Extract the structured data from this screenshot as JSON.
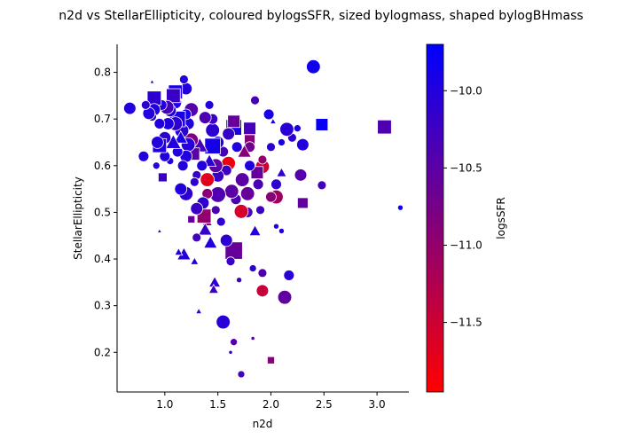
{
  "chart_data": {
    "type": "scatter",
    "title": "n2d vs StellarEllipticity, coloured bylogsSFR, sized bylogmass, shaped bylogBHmass",
    "xlabel": "n2d",
    "ylabel": "StellarEllipticity",
    "xlim": [
      0.55,
      3.3
    ],
    "ylim": [
      0.115,
      0.86
    ],
    "xticks": [
      {
        "value": 1.0,
        "label": "1.0"
      },
      {
        "value": 1.5,
        "label": "1.5"
      },
      {
        "value": 2.0,
        "label": "2.0"
      },
      {
        "value": 2.5,
        "label": "2.5"
      },
      {
        "value": 3.0,
        "label": "3.0"
      }
    ],
    "yticks": [
      {
        "value": 0.2,
        "label": "0.2"
      },
      {
        "value": 0.3,
        "label": "0.3"
      },
      {
        "value": 0.4,
        "label": "0.4"
      },
      {
        "value": 0.5,
        "label": "0.5"
      },
      {
        "value": 0.6,
        "label": "0.6"
      },
      {
        "value": 0.7,
        "label": "0.7"
      },
      {
        "value": 0.8,
        "label": "0.8"
      }
    ],
    "grid": false,
    "spines": "left-bottom",
    "colorbar": {
      "label": "logsSFR",
      "range": [
        -11.95,
        -9.7
      ],
      "colors": [
        "#ff0000",
        "#0000ff"
      ],
      "ticks": [
        {
          "value": -10.0,
          "label": "−10.0"
        },
        {
          "value": -10.5,
          "label": "−10.5"
        },
        {
          "value": -11.0,
          "label": "−11.0"
        },
        {
          "value": -11.5,
          "label": "−11.5"
        }
      ]
    },
    "points": [
      {
        "x": 2.4,
        "y": 0.812,
        "c": -9.85,
        "s": 7,
        "m": "o"
      },
      {
        "x": 3.07,
        "y": 0.683,
        "c": -10.4,
        "s": 7,
        "m": "s"
      },
      {
        "x": 2.48,
        "y": 0.688,
        "c": -9.75,
        "s": 6,
        "m": "s"
      },
      {
        "x": 3.22,
        "y": 0.51,
        "c": -9.8,
        "s": 2,
        "m": "o"
      },
      {
        "x": 2.48,
        "y": 0.558,
        "c": -10.3,
        "s": 4,
        "m": "o"
      },
      {
        "x": 2.3,
        "y": 0.645,
        "c": -10.0,
        "s": 6,
        "m": "o"
      },
      {
        "x": 2.28,
        "y": 0.58,
        "c": -10.45,
        "s": 6,
        "m": "o"
      },
      {
        "x": 2.3,
        "y": 0.52,
        "c": -10.55,
        "s": 5,
        "m": "s"
      },
      {
        "x": 2.25,
        "y": 0.68,
        "c": -9.9,
        "s": 3,
        "m": "o"
      },
      {
        "x": 2.2,
        "y": 0.66,
        "c": -10.1,
        "s": 4,
        "m": "o"
      },
      {
        "x": 2.15,
        "y": 0.678,
        "c": -10.05,
        "s": 7,
        "m": "o"
      },
      {
        "x": 2.1,
        "y": 0.65,
        "c": -9.9,
        "s": 3,
        "m": "o"
      },
      {
        "x": 2.1,
        "y": 0.585,
        "c": -10.1,
        "s": 4,
        "m": "^"
      },
      {
        "x": 2.17,
        "y": 0.365,
        "c": -10.05,
        "s": 5,
        "m": "o"
      },
      {
        "x": 2.13,
        "y": 0.318,
        "c": -10.55,
        "s": 7,
        "m": "o"
      },
      {
        "x": 2.05,
        "y": 0.533,
        "c": -11.1,
        "s": 7,
        "m": "o"
      },
      {
        "x": 2.0,
        "y": 0.533,
        "c": -10.9,
        "s": 5,
        "m": "o"
      },
      {
        "x": 2.05,
        "y": 0.56,
        "c": -10.1,
        "s": 5,
        "m": "o"
      },
      {
        "x": 2.05,
        "y": 0.47,
        "c": -10.0,
        "s": 2,
        "m": "o"
      },
      {
        "x": 2.1,
        "y": 0.46,
        "c": -10.0,
        "s": 2,
        "m": "o"
      },
      {
        "x": 2.0,
        "y": 0.64,
        "c": -10.1,
        "s": 4,
        "m": "o"
      },
      {
        "x": 1.98,
        "y": 0.71,
        "c": -9.9,
        "s": 5,
        "m": "o"
      },
      {
        "x": 2.02,
        "y": 0.695,
        "c": -10.0,
        "s": 2,
        "m": "^"
      },
      {
        "x": 2.0,
        "y": 0.183,
        "c": -10.9,
        "s": 3,
        "m": "s"
      },
      {
        "x": 1.92,
        "y": 0.598,
        "c": -11.5,
        "s": 7,
        "m": "o"
      },
      {
        "x": 1.92,
        "y": 0.613,
        "c": -11.0,
        "s": 4,
        "m": "o"
      },
      {
        "x": 1.92,
        "y": 0.332,
        "c": -11.45,
        "s": 6,
        "m": "o"
      },
      {
        "x": 1.92,
        "y": 0.37,
        "c": -10.4,
        "s": 4,
        "m": "o"
      },
      {
        "x": 1.9,
        "y": 0.505,
        "c": -10.2,
        "s": 4,
        "m": "o"
      },
      {
        "x": 1.88,
        "y": 0.56,
        "c": -10.35,
        "s": 5,
        "m": "o"
      },
      {
        "x": 1.87,
        "y": 0.585,
        "c": -10.6,
        "s": 6,
        "m": "s"
      },
      {
        "x": 1.85,
        "y": 0.74,
        "c": -10.3,
        "s": 4,
        "m": "o"
      },
      {
        "x": 1.85,
        "y": 0.46,
        "c": -10.05,
        "s": 5,
        "m": "^"
      },
      {
        "x": 1.83,
        "y": 0.38,
        "c": -10.1,
        "s": 3,
        "m": "o"
      },
      {
        "x": 1.83,
        "y": 0.23,
        "c": -10.4,
        "s": 1,
        "m": "o"
      },
      {
        "x": 1.8,
        "y": 0.68,
        "c": -10.3,
        "s": 6,
        "m": "s"
      },
      {
        "x": 1.8,
        "y": 0.655,
        "c": -10.9,
        "s": 5,
        "m": "s"
      },
      {
        "x": 1.8,
        "y": 0.64,
        "c": -10.7,
        "s": 5,
        "m": "o"
      },
      {
        "x": 1.8,
        "y": 0.6,
        "c": -10.0,
        "s": 5,
        "m": "o"
      },
      {
        "x": 1.78,
        "y": 0.54,
        "c": -10.6,
        "s": 7,
        "m": "o"
      },
      {
        "x": 1.78,
        "y": 0.5,
        "c": -10.3,
        "s": 5,
        "m": "o"
      },
      {
        "x": 1.75,
        "y": 0.63,
        "c": -10.9,
        "s": 6,
        "m": "^"
      },
      {
        "x": 1.73,
        "y": 0.57,
        "c": -10.5,
        "s": 7,
        "m": "o"
      },
      {
        "x": 1.72,
        "y": 0.502,
        "c": -11.6,
        "s": 7,
        "m": "o"
      },
      {
        "x": 1.7,
        "y": 0.355,
        "c": -10.3,
        "s": 2,
        "m": "o"
      },
      {
        "x": 1.72,
        "y": 0.153,
        "c": -10.3,
        "s": 3,
        "m": "o"
      },
      {
        "x": 1.68,
        "y": 0.64,
        "c": -10.0,
        "s": 5,
        "m": "o"
      },
      {
        "x": 1.67,
        "y": 0.528,
        "c": -10.4,
        "s": 5,
        "m": "o"
      },
      {
        "x": 1.65,
        "y": 0.682,
        "c": -9.95,
        "s": 8,
        "m": "s"
      },
      {
        "x": 1.65,
        "y": 0.695,
        "c": -10.6,
        "s": 6,
        "m": "s"
      },
      {
        "x": 1.65,
        "y": 0.418,
        "c": -10.6,
        "s": 9,
        "m": "s"
      },
      {
        "x": 1.65,
        "y": 0.222,
        "c": -10.4,
        "s": 3,
        "m": "o"
      },
      {
        "x": 1.63,
        "y": 0.545,
        "c": -10.5,
        "s": 7,
        "m": "o"
      },
      {
        "x": 1.62,
        "y": 0.395,
        "c": -10.2,
        "s": 4,
        "m": "o"
      },
      {
        "x": 1.62,
        "y": 0.2,
        "c": -10.1,
        "s": 1,
        "m": "o"
      },
      {
        "x": 1.6,
        "y": 0.605,
        "c": -11.8,
        "s": 7,
        "m": "o"
      },
      {
        "x": 1.6,
        "y": 0.668,
        "c": -10.2,
        "s": 6,
        "m": "o"
      },
      {
        "x": 1.58,
        "y": 0.44,
        "c": -10.1,
        "s": 6,
        "m": "o"
      },
      {
        "x": 1.58,
        "y": 0.59,
        "c": -10.25,
        "s": 5,
        "m": "o"
      },
      {
        "x": 1.55,
        "y": 0.265,
        "c": -10.05,
        "s": 7,
        "m": "o"
      },
      {
        "x": 1.55,
        "y": 0.63,
        "c": -10.3,
        "s": 5,
        "m": "o"
      },
      {
        "x": 1.53,
        "y": 0.48,
        "c": -10.1,
        "s": 4,
        "m": "o"
      },
      {
        "x": 1.5,
        "y": 0.538,
        "c": -10.4,
        "s": 8,
        "m": "o"
      },
      {
        "x": 1.5,
        "y": 0.578,
        "c": -10.2,
        "s": 6,
        "m": "o"
      },
      {
        "x": 1.5,
        "y": 0.65,
        "c": -10.0,
        "s": 6,
        "m": "o"
      },
      {
        "x": 1.48,
        "y": 0.6,
        "c": -10.5,
        "s": 7,
        "m": "o"
      },
      {
        "x": 1.48,
        "y": 0.505,
        "c": -10.35,
        "s": 4,
        "m": "o"
      },
      {
        "x": 1.47,
        "y": 0.35,
        "c": -10.1,
        "s": 5,
        "m": "^"
      },
      {
        "x": 1.46,
        "y": 0.335,
        "c": -10.2,
        "s": 4,
        "m": "^"
      },
      {
        "x": 1.45,
        "y": 0.642,
        "c": -9.9,
        "s": 8,
        "m": "s"
      },
      {
        "x": 1.45,
        "y": 0.676,
        "c": -10.1,
        "s": 7,
        "m": "o"
      },
      {
        "x": 1.45,
        "y": 0.7,
        "c": -10.2,
        "s": 5,
        "m": "o"
      },
      {
        "x": 1.43,
        "y": 0.435,
        "c": -10.0,
        "s": 6,
        "m": "^"
      },
      {
        "x": 1.42,
        "y": 0.61,
        "c": -10.1,
        "s": 6,
        "m": "^"
      },
      {
        "x": 1.42,
        "y": 0.73,
        "c": -10.0,
        "s": 4,
        "m": "o"
      },
      {
        "x": 1.4,
        "y": 0.57,
        "c": -11.7,
        "s": 7,
        "m": "o"
      },
      {
        "x": 1.4,
        "y": 0.54,
        "c": -10.9,
        "s": 5,
        "m": "o"
      },
      {
        "x": 1.4,
        "y": 0.48,
        "c": -10.95,
        "s": 4,
        "m": "^"
      },
      {
        "x": 1.38,
        "y": 0.703,
        "c": -10.4,
        "s": 6,
        "m": "o"
      },
      {
        "x": 1.38,
        "y": 0.463,
        "c": -10.2,
        "s": 6,
        "m": "^"
      },
      {
        "x": 1.37,
        "y": 0.492,
        "c": -11.0,
        "s": 7,
        "m": "s"
      },
      {
        "x": 1.36,
        "y": 0.52,
        "c": -10.1,
        "s": 6,
        "m": "o"
      },
      {
        "x": 1.35,
        "y": 0.6,
        "c": -10.0,
        "s": 5,
        "m": "o"
      },
      {
        "x": 1.33,
        "y": 0.643,
        "c": -10.3,
        "s": 7,
        "m": "^"
      },
      {
        "x": 1.32,
        "y": 0.288,
        "c": -10.1,
        "s": 2,
        "m": "^"
      },
      {
        "x": 1.3,
        "y": 0.58,
        "c": -10.2,
        "s": 4,
        "m": "o"
      },
      {
        "x": 1.3,
        "y": 0.508,
        "c": -10.2,
        "s": 6,
        "m": "o"
      },
      {
        "x": 1.3,
        "y": 0.446,
        "c": -10.3,
        "s": 4,
        "m": "o"
      },
      {
        "x": 1.28,
        "y": 0.395,
        "c": -10.0,
        "s": 3,
        "m": "^"
      },
      {
        "x": 1.28,
        "y": 0.565,
        "c": -10.1,
        "s": 4,
        "m": "o"
      },
      {
        "x": 1.27,
        "y": 0.625,
        "c": -10.5,
        "s": 6,
        "m": "s"
      },
      {
        "x": 1.25,
        "y": 0.72,
        "c": -10.45,
        "s": 7,
        "m": "o"
      },
      {
        "x": 1.25,
        "y": 0.655,
        "c": -10.8,
        "s": 7,
        "m": "o"
      },
      {
        "x": 1.25,
        "y": 0.485,
        "c": -10.6,
        "s": 3,
        "m": "s"
      },
      {
        "x": 1.22,
        "y": 0.645,
        "c": -10.05,
        "s": 7,
        "m": "o"
      },
      {
        "x": 1.22,
        "y": 0.69,
        "c": -10.0,
        "s": 6,
        "m": "o"
      },
      {
        "x": 1.2,
        "y": 0.765,
        "c": -10.0,
        "s": 6,
        "m": "o"
      },
      {
        "x": 1.2,
        "y": 0.71,
        "c": -9.9,
        "s": 5,
        "m": "o"
      },
      {
        "x": 1.2,
        "y": 0.62,
        "c": -10.0,
        "s": 6,
        "m": "o"
      },
      {
        "x": 1.2,
        "y": 0.54,
        "c": -10.1,
        "s": 7,
        "m": "o"
      },
      {
        "x": 1.18,
        "y": 0.785,
        "c": -10.0,
        "s": 4,
        "m": "o"
      },
      {
        "x": 1.18,
        "y": 0.41,
        "c": -10.0,
        "s": 6,
        "m": "^"
      },
      {
        "x": 1.17,
        "y": 0.6,
        "c": -10.0,
        "s": 5,
        "m": "o"
      },
      {
        "x": 1.16,
        "y": 0.675,
        "c": -10.1,
        "s": 7,
        "m": "o"
      },
      {
        "x": 1.15,
        "y": 0.55,
        "c": -10.0,
        "s": 6,
        "m": "o"
      },
      {
        "x": 1.15,
        "y": 0.66,
        "c": -9.9,
        "s": 6,
        "m": "^"
      },
      {
        "x": 1.13,
        "y": 0.415,
        "c": -10.0,
        "s": 3,
        "m": "^"
      },
      {
        "x": 1.12,
        "y": 0.7,
        "c": -9.95,
        "s": 8,
        "m": "s"
      },
      {
        "x": 1.12,
        "y": 0.63,
        "c": -10.0,
        "s": 5,
        "m": "o"
      },
      {
        "x": 1.1,
        "y": 0.69,
        "c": -10.1,
        "s": 7,
        "m": "o"
      },
      {
        "x": 1.1,
        "y": 0.758,
        "c": -9.9,
        "s": 7,
        "m": "s"
      },
      {
        "x": 1.1,
        "y": 0.735,
        "c": -10.0,
        "s": 6,
        "m": "o"
      },
      {
        "x": 1.08,
        "y": 0.75,
        "c": -10.2,
        "s": 7,
        "m": "s"
      },
      {
        "x": 1.08,
        "y": 0.65,
        "c": -10.0,
        "s": 7,
        "m": "^"
      },
      {
        "x": 1.05,
        "y": 0.61,
        "c": -10.0,
        "s": 3,
        "m": "o"
      },
      {
        "x": 1.05,
        "y": 0.718,
        "c": -10.0,
        "s": 6,
        "m": "o"
      },
      {
        "x": 1.03,
        "y": 0.69,
        "c": -10.0,
        "s": 6,
        "m": "o"
      },
      {
        "x": 1.02,
        "y": 0.725,
        "c": -10.3,
        "s": 7,
        "m": "o"
      },
      {
        "x": 1.0,
        "y": 0.66,
        "c": -10.1,
        "s": 6,
        "m": "o"
      },
      {
        "x": 1.0,
        "y": 0.62,
        "c": -10.0,
        "s": 5,
        "m": "o"
      },
      {
        "x": 0.98,
        "y": 0.575,
        "c": -10.2,
        "s": 4,
        "m": "s"
      },
      {
        "x": 0.97,
        "y": 0.73,
        "c": -10.0,
        "s": 5,
        "m": "o"
      },
      {
        "x": 0.95,
        "y": 0.643,
        "c": -10.0,
        "s": 7,
        "m": "s"
      },
      {
        "x": 0.95,
        "y": 0.69,
        "c": -10.0,
        "s": 5,
        "m": "o"
      },
      {
        "x": 0.95,
        "y": 0.46,
        "c": -10.0,
        "s": 1,
        "m": "^"
      },
      {
        "x": 0.93,
        "y": 0.65,
        "c": -10.0,
        "s": 6,
        "m": "o"
      },
      {
        "x": 0.92,
        "y": 0.6,
        "c": -10.05,
        "s": 3,
        "m": "o"
      },
      {
        "x": 0.9,
        "y": 0.745,
        "c": -10.1,
        "s": 7,
        "m": "s"
      },
      {
        "x": 0.9,
        "y": 0.72,
        "c": -10.0,
        "s": 6,
        "m": "o"
      },
      {
        "x": 0.88,
        "y": 0.705,
        "c": -10.1,
        "s": 4,
        "m": "o"
      },
      {
        "x": 0.88,
        "y": 0.78,
        "c": -10.0,
        "s": 1,
        "m": "^"
      },
      {
        "x": 0.85,
        "y": 0.712,
        "c": -10.0,
        "s": 6,
        "m": "o"
      },
      {
        "x": 0.82,
        "y": 0.73,
        "c": -10.1,
        "s": 4,
        "m": "o"
      },
      {
        "x": 0.8,
        "y": 0.62,
        "c": -10.0,
        "s": 5,
        "m": "o"
      },
      {
        "x": 0.67,
        "y": 0.723,
        "c": -10.0,
        "s": 6,
        "m": "o"
      }
    ]
  }
}
